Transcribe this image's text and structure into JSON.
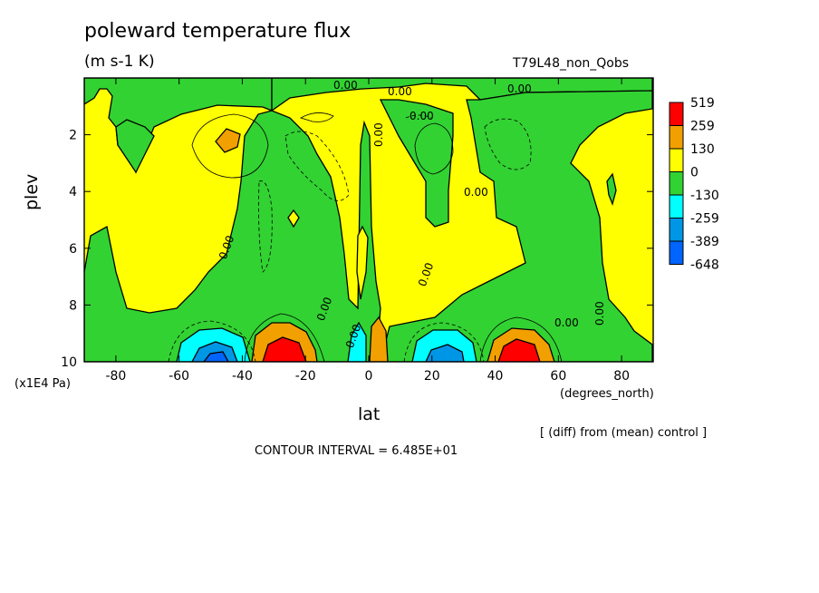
{
  "header": {
    "title": "poleward temperature flux",
    "units": "(m s-1 K)",
    "run": "T79L48_non_Qobs",
    "diff_note": "[ (diff) from (mean) control ]",
    "contour_interval": "CONTOUR INTERVAL = 6.485E+01"
  },
  "chart_data": {
    "type": "heatmap",
    "xlabel": "lat",
    "ylabel": "plev",
    "x_units": "(degrees_north)",
    "y_units": "(x1E4 Pa)",
    "xlim": [
      -90,
      90
    ],
    "ylim": [
      0,
      10
    ],
    "y_inverted": true,
    "x_ticks": [
      -80,
      -60,
      -40,
      -20,
      0,
      20,
      40,
      60,
      80
    ],
    "y_ticks": [
      2,
      4,
      6,
      8,
      10
    ],
    "legend": {
      "placement": "right",
      "levels": [
        519,
        259,
        130,
        0,
        -130,
        -259,
        -389,
        -648
      ],
      "colors": [
        "#ff0000",
        "#f2a000",
        "#ffff00",
        "#32d232",
        "#00ffff",
        "#0096e6",
        "#0064ff",
        "#0064ff"
      ]
    },
    "zero_contour_label": "0.00",
    "contour_labels": [
      "0.00",
      "0.00",
      "0.00",
      "0.00",
      "0.00",
      "0.00",
      "0.00",
      "0.00",
      "0.00",
      "0.00",
      "0.00",
      "0.00"
    ],
    "features": [
      {
        "lat": -46,
        "plev": 9.7,
        "value": -520
      },
      {
        "lat": -26,
        "plev": 9.7,
        "value": 519
      },
      {
        "lat": -3,
        "plev": 9.6,
        "value": -260
      },
      {
        "lat": 3,
        "plev": 9.6,
        "value": 260
      },
      {
        "lat": 24,
        "plev": 9.7,
        "value": -390
      },
      {
        "lat": 46,
        "plev": 9.7,
        "value": 519
      },
      {
        "lat": -44,
        "plev": 2.3,
        "value": 200
      }
    ]
  }
}
